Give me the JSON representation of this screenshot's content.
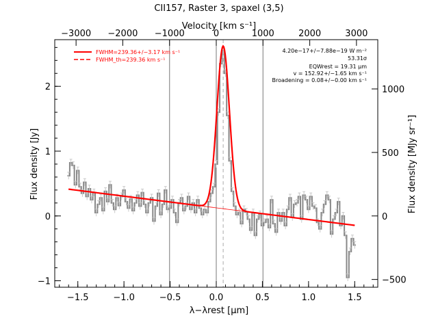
{
  "chart_data": {
    "type": "line",
    "title": "CII157, Raster 3, spaxel (3,5)",
    "xlabel": "λ−λrest [μm]",
    "ylabel": "Flux density [Jy]",
    "top_xlabel": "Velocity [km s⁻¹]",
    "right_ylabel": "Flux density [MJy sr⁻¹]",
    "xlim": [
      -1.75,
      1.75
    ],
    "ylim": [
      -1.1,
      2.72
    ],
    "x_ticks": [
      -1.5,
      -1.0,
      -0.5,
      0.0,
      0.5,
      1.0,
      1.5
    ],
    "x_tick_labels": [
      "−1.5",
      "−1.0",
      "−0.5",
      "0.0",
      "0.5",
      "1.0",
      "1.5"
    ],
    "y_ticks": [
      -1,
      0,
      1,
      2
    ],
    "y_tick_labels": [
      "−1",
      "0",
      "1",
      "2"
    ],
    "top_ticks_x": [
      -1.519,
      -1.013,
      -0.506,
      0.0,
      0.506,
      1.013,
      1.519
    ],
    "top_tick_labels": [
      "−3000",
      "−2000",
      "−1000",
      "0",
      "1000",
      "2000",
      "3000"
    ],
    "right_ticks_y": [
      -0.98,
      0.0,
      0.98,
      1.96
    ],
    "right_tick_labels": [
      "−500",
      "0",
      "500",
      "1000"
    ],
    "vertical_lines_x": [
      -0.506,
      0.0,
      0.506
    ],
    "dashed_line_x": 0.075,
    "legend": {
      "position": "top-left",
      "entries": [
        "FWHM=239.36+/−3.17 km s⁻¹",
        "FWHM_th=239.36 km s⁻¹"
      ]
    },
    "annotations": [
      "4.20e−17+/−7.88e−19 W m⁻²",
      "53.31σ",
      "EQWrest = 19.31 μm",
      "v = 152.92+/−1.65 km s⁻¹",
      "Broadening = 0.08+/−0.00 km s⁻¹"
    ],
    "series": [
      {
        "name": "data",
        "color": "#888888",
        "x": [
          -1.6,
          -1.575,
          -1.55,
          -1.525,
          -1.5,
          -1.475,
          -1.45,
          -1.425,
          -1.4,
          -1.375,
          -1.35,
          -1.325,
          -1.3,
          -1.275,
          -1.25,
          -1.225,
          -1.2,
          -1.175,
          -1.15,
          -1.125,
          -1.1,
          -1.075,
          -1.05,
          -1.025,
          -1.0,
          -0.975,
          -0.95,
          -0.925,
          -0.9,
          -0.875,
          -0.85,
          -0.825,
          -0.8,
          -0.775,
          -0.75,
          -0.725,
          -0.7,
          -0.675,
          -0.65,
          -0.625,
          -0.6,
          -0.575,
          -0.55,
          -0.525,
          -0.5,
          -0.475,
          -0.45,
          -0.425,
          -0.4,
          -0.375,
          -0.35,
          -0.325,
          -0.3,
          -0.275,
          -0.25,
          -0.225,
          -0.2,
          -0.175,
          -0.15,
          -0.125,
          -0.1,
          -0.075,
          -0.05,
          -0.025,
          0.0,
          0.025,
          0.05,
          0.075,
          0.1,
          0.125,
          0.15,
          0.175,
          0.2,
          0.225,
          0.25,
          0.275,
          0.3,
          0.325,
          0.35,
          0.375,
          0.4,
          0.425,
          0.45,
          0.475,
          0.5,
          0.525,
          0.55,
          0.575,
          0.6,
          0.625,
          0.65,
          0.675,
          0.7,
          0.725,
          0.75,
          0.775,
          0.8,
          0.825,
          0.85,
          0.875,
          0.9,
          0.925,
          0.95,
          0.975,
          1.0,
          1.025,
          1.05,
          1.075,
          1.1,
          1.125,
          1.15,
          1.175,
          1.2,
          1.225,
          1.25,
          1.275,
          1.3,
          1.325,
          1.35,
          1.375,
          1.4,
          1.425,
          1.45,
          1.475,
          1.5
        ],
        "y": [
          0.62,
          0.82,
          0.78,
          0.48,
          0.7,
          0.45,
          0.35,
          0.52,
          0.3,
          0.42,
          0.25,
          0.36,
          0.05,
          0.18,
          0.28,
          0.08,
          0.38,
          0.22,
          0.48,
          0.2,
          0.1,
          0.28,
          0.16,
          0.3,
          0.4,
          0.22,
          0.12,
          0.26,
          0.08,
          0.2,
          0.32,
          0.15,
          0.36,
          0.18,
          0.05,
          0.2,
          0.28,
          -0.08,
          0.15,
          0.35,
          0.02,
          0.18,
          0.4,
          0.1,
          0.12,
          0.25,
          0.05,
          -0.1,
          0.2,
          0.28,
          0.08,
          0.15,
          0.3,
          0.1,
          0.2,
          0.05,
          0.25,
          0.12,
          0.02,
          0.1,
          0.05,
          0.22,
          0.35,
          0.45,
          0.8,
          1.6,
          2.35,
          2.55,
          2.2,
          1.55,
          0.85,
          0.38,
          0.15,
          0.02,
          0.05,
          -0.12,
          0.1,
          0.06,
          -0.05,
          -0.22,
          0.05,
          -0.3,
          -0.05,
          0.02,
          -0.15,
          -0.1,
          -0.05,
          -0.18,
          0.25,
          -0.12,
          -0.25,
          0.05,
          -0.08,
          0.05,
          -0.15,
          0.1,
          0.28,
          -0.02,
          0.18,
          0.2,
          0.3,
          -0.05,
          0.32,
          0.25,
          0.1,
          0.3,
          0.15,
          0.12,
          -0.1,
          -0.2,
          0.05,
          0.18,
          0.32,
          0.25,
          -0.28,
          -0.05,
          0.05,
          0.22,
          -0.15,
          0.0,
          -0.3,
          -0.95,
          -0.55,
          -0.35,
          -0.45
        ]
      },
      {
        "name": "FWHM=239.36+/−3.17 km s⁻¹",
        "color": "#ff0000",
        "style": "solid",
        "model": {
          "a": 0.125,
          "b": -0.18,
          "amp": 2.51,
          "center": 0.075,
          "fwhm": 0.16
        }
      },
      {
        "name": "FWHM_th=239.36 km s⁻¹",
        "color": "#ff0000",
        "style": "dashed",
        "model": {
          "a": 0.125,
          "b": -0.18,
          "amp": 2.51,
          "center": 0.075,
          "fwhm": 0.16
        }
      },
      {
        "name": "continuum",
        "color": "#ff0000",
        "style": "thin",
        "model": {
          "a": 0.125,
          "b": -0.18
        }
      }
    ]
  }
}
